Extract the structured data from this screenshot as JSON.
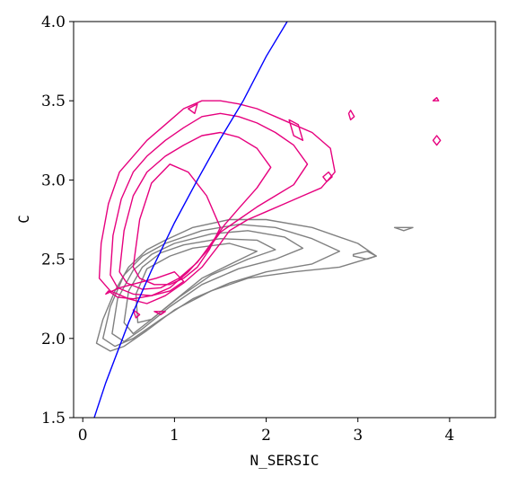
{
  "chart_data": {
    "type": "contour",
    "title": "",
    "xlabel": "N_SERSIC",
    "ylabel": "C",
    "xlim": [
      -0.1,
      4.5
    ],
    "ylim": [
      1.5,
      4.0
    ],
    "xticks": [
      0,
      1,
      2,
      3,
      4
    ],
    "yticks": [
      1.5,
      2.0,
      2.5,
      3.0,
      3.5,
      4.0
    ],
    "xtick_labels": [
      "0",
      "1",
      "2",
      "3",
      "4"
    ],
    "ytick_labels": [
      "1.5",
      "2.0",
      "2.5",
      "3.0",
      "3.5",
      "4.0"
    ],
    "grid": false,
    "legend": "none",
    "series": [
      {
        "color": "#808080",
        "kind": "contours",
        "levels": [
          {
            "x": [
              0.9,
              1.2,
              1.6,
              2.0,
              2.5,
              3.0,
              3.2,
              2.8,
              2.3,
              1.8,
              1.4,
              1.0,
              0.7,
              0.45,
              0.3,
              0.15,
              0.22,
              0.35,
              0.5,
              0.7
            ],
            "y": [
              2.62,
              2.7,
              2.75,
              2.75,
              2.7,
              2.6,
              2.52,
              2.45,
              2.42,
              2.38,
              2.3,
              2.18,
              2.05,
              1.95,
              1.92,
              1.97,
              2.12,
              2.3,
              2.45,
              2.56
            ]
          },
          {
            "x": [
              0.9,
              1.3,
              1.7,
              2.1,
              2.5,
              2.8,
              2.5,
              2.0,
              1.6,
              1.2,
              0.85,
              0.55,
              0.35,
              0.22,
              0.3,
              0.45,
              0.65
            ],
            "y": [
              2.6,
              2.68,
              2.72,
              2.7,
              2.63,
              2.55,
              2.47,
              2.42,
              2.35,
              2.25,
              2.12,
              2.0,
              1.95,
              2.0,
              2.2,
              2.4,
              2.52
            ]
          },
          {
            "x": [
              1.0,
              1.4,
              1.8,
              2.2,
              2.4,
              2.1,
              1.7,
              1.3,
              0.95,
              0.65,
              0.45,
              0.32,
              0.38,
              0.55,
              0.75
            ],
            "y": [
              2.6,
              2.66,
              2.68,
              2.64,
              2.57,
              2.5,
              2.44,
              2.34,
              2.2,
              2.06,
              1.98,
              2.03,
              2.25,
              2.43,
              2.53
            ]
          },
          {
            "x": [
              1.1,
              1.5,
              1.9,
              2.1,
              1.8,
              1.4,
              1.05,
              0.75,
              0.55,
              0.45,
              0.5,
              0.65,
              0.85
            ],
            "y": [
              2.59,
              2.63,
              2.62,
              2.56,
              2.5,
              2.4,
              2.26,
              2.12,
              2.03,
              2.1,
              2.3,
              2.45,
              2.54
            ]
          },
          {
            "x": [
              1.2,
              1.6,
              1.9,
              1.65,
              1.3,
              1.0,
              0.75,
              0.6,
              0.58,
              0.7,
              0.95
            ],
            "y": [
              2.57,
              2.6,
              2.55,
              2.48,
              2.38,
              2.24,
              2.12,
              2.1,
              2.28,
              2.44,
              2.52
            ]
          },
          {
            "x": [
              2.95,
              3.1,
              3.2,
              3.1,
              2.95
            ],
            "y": [
              2.53,
              2.55,
              2.52,
              2.5,
              2.52
            ]
          },
          {
            "x": [
              3.4,
              3.6,
              3.5,
              3.4
            ],
            "y": [
              2.7,
              2.7,
              2.68,
              2.7
            ]
          }
        ]
      },
      {
        "color": "#e6007e",
        "kind": "contours",
        "levels": [
          {
            "x": [
              0.18,
              0.2,
              0.28,
              0.4,
              0.55,
              0.7,
              0.9,
              1.1,
              1.3,
              1.5,
              1.7,
              1.9,
              2.1,
              2.3,
              2.5,
              2.7,
              2.75,
              2.6,
              2.4,
              2.2,
              2.0,
              1.8,
              1.6,
              1.5,
              1.3,
              1.1,
              0.9,
              0.7,
              0.5,
              0.3
            ],
            "y": [
              2.38,
              2.6,
              2.85,
              3.05,
              3.15,
              3.25,
              3.35,
              3.45,
              3.5,
              3.5,
              3.48,
              3.45,
              3.4,
              3.35,
              3.3,
              3.2,
              3.05,
              2.95,
              2.9,
              2.85,
              2.8,
              2.75,
              2.68,
              2.6,
              2.45,
              2.35,
              2.27,
              2.22,
              2.25,
              2.3
            ]
          },
          {
            "x": [
              0.3,
              0.33,
              0.42,
              0.55,
              0.7,
              0.9,
              1.1,
              1.3,
              1.5,
              1.7,
              1.9,
              2.1,
              2.3,
              2.45,
              2.3,
              2.1,
              1.9,
              1.7,
              1.5,
              1.35,
              1.15,
              0.95,
              0.75,
              0.55,
              0.38
            ],
            "y": [
              2.4,
              2.65,
              2.88,
              3.05,
              3.15,
              3.25,
              3.33,
              3.4,
              3.42,
              3.4,
              3.36,
              3.3,
              3.22,
              3.1,
              2.97,
              2.9,
              2.83,
              2.75,
              2.67,
              2.55,
              2.42,
              2.32,
              2.27,
              2.28,
              2.32
            ]
          },
          {
            "x": [
              0.4,
              0.45,
              0.55,
              0.7,
              0.9,
              1.1,
              1.3,
              1.5,
              1.7,
              1.9,
              2.05,
              1.9,
              1.7,
              1.55,
              1.4,
              1.25,
              1.05,
              0.85,
              0.65,
              0.48
            ],
            "y": [
              2.42,
              2.68,
              2.9,
              3.05,
              3.15,
              3.22,
              3.28,
              3.3,
              3.27,
              3.2,
              3.08,
              2.95,
              2.82,
              2.72,
              2.6,
              2.48,
              2.38,
              2.32,
              2.31,
              2.35
            ]
          },
          {
            "x": [
              0.55,
              0.62,
              0.75,
              0.95,
              1.15,
              1.35,
              1.5,
              1.38,
              1.25,
              1.1,
              0.95,
              0.78,
              0.62
            ],
            "y": [
              2.45,
              2.75,
              2.98,
              3.1,
              3.05,
              2.9,
              2.7,
              2.56,
              2.45,
              2.38,
              2.34,
              2.34,
              2.38
            ]
          },
          {
            "x": [
              0.25,
              0.4,
              0.6,
              0.8,
              1.0,
              1.1,
              0.95,
              0.75,
              0.55,
              0.38,
              0.28
            ],
            "y": [
              2.28,
              2.32,
              2.35,
              2.38,
              2.42,
              2.36,
              2.3,
              2.27,
              2.25,
              2.26,
              2.3
            ]
          },
          {
            "x": [
              1.15,
              1.25,
              1.22,
              1.15
            ],
            "y": [
              3.45,
              3.48,
              3.42,
              3.45
            ]
          },
          {
            "x": [
              2.25,
              2.35,
              2.4,
              2.3,
              2.25
            ],
            "y": [
              3.38,
              3.35,
              3.25,
              3.28,
              3.38
            ]
          },
          {
            "x": [
              2.9,
              2.92,
              2.96,
              2.92,
              2.9
            ],
            "y": [
              3.42,
              3.44,
              3.4,
              3.38,
              3.42
            ]
          },
          {
            "x": [
              3.82,
              3.86,
              3.9,
              3.86,
              3.82
            ],
            "y": [
              3.25,
              3.28,
              3.25,
              3.22,
              3.25
            ]
          },
          {
            "x": [
              3.82,
              3.86,
              3.88,
              3.82
            ],
            "y": [
              3.5,
              3.52,
              3.5,
              3.5
            ]
          },
          {
            "x": [
              2.62,
              2.68,
              2.72,
              2.66,
              2.62
            ],
            "y": [
              3.02,
              3.05,
              3.02,
              2.99,
              3.02
            ]
          },
          {
            "x": [
              0.55,
              0.62,
              0.58,
              0.55
            ],
            "y": [
              2.18,
              2.15,
              2.13,
              2.18
            ]
          },
          {
            "x": [
              0.78,
              0.9,
              0.85,
              0.78
            ],
            "y": [
              2.17,
              2.17,
              2.15,
              2.17
            ]
          }
        ]
      },
      {
        "color": "#0000ff",
        "kind": "line",
        "x": [
          0.0,
          0.25,
          0.5,
          0.75,
          1.0,
          1.25,
          1.5,
          1.75,
          2.0,
          2.25
        ],
        "y": [
          1.28,
          1.72,
          2.1,
          2.43,
          2.73,
          3.0,
          3.26,
          3.5,
          3.78,
          4.02
        ]
      }
    ]
  }
}
